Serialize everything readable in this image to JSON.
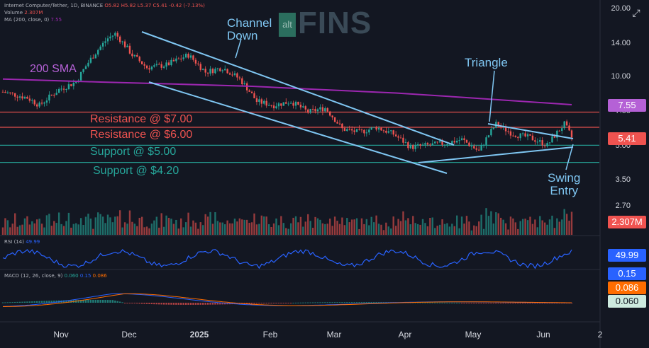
{
  "header": {
    "symbol": "Internet Computer/Tether, 1D, BINANCE",
    "ohlc_o": "O5.82",
    "ohlc_h": "H5.82",
    "ohlc_l": "L5.37",
    "ohlc_c": "C5.41",
    "change": "-0.42 (-7.13%)",
    "volume_label": "Volume",
    "volume_value": "2.307M",
    "ma_label": "MA (200, close, 0)",
    "ma_value": "7.55",
    "rsi_label": "RSI (14)",
    "rsi_value": "49.99",
    "macd_label": "MACD (12, 26, close, 9)",
    "macd_v1": "0.060",
    "macd_v2": "0.15",
    "macd_v3": "0.086"
  },
  "watermark": {
    "alt": "alt",
    "name": "FINS"
  },
  "annotations": {
    "channel": "Channel\nDown",
    "triangle": "Triangle",
    "swing": "Swing\nEntry",
    "sma": "200 SMA",
    "res7": "Resistance @ $7.00",
    "res6": "Resistance @ $6.00",
    "sup5": "Support @ $5.00",
    "sup42": "Support @ $4.20"
  },
  "y_ticks": [
    "20.00",
    "14.00",
    "10.00",
    "7.00",
    "5.00",
    "3.50",
    "2.70"
  ],
  "badges": {
    "sma": "7.55",
    "price": "5.41",
    "volume": "2.307M",
    "rsi": "49.99",
    "macd_a": "0.15",
    "macd_b": "0.086",
    "macd_c": "0.060"
  },
  "colors": {
    "up": "#26a69a",
    "down": "#ef5350",
    "sma": "#9c27b0",
    "rsi": "#2962ff",
    "macd": "#2962ff",
    "signal": "#ff6d00",
    "channel": "#7fc6f2",
    "resistance": "#ef5350",
    "support": "#26a69a"
  },
  "x_labels": [
    "Nov",
    "Dec",
    "2025",
    "Feb",
    "Mar",
    "Apr",
    "May",
    "Jun",
    "2"
  ],
  "chart_data": {
    "type": "candlestick",
    "symbol": "Internet Computer/Tether",
    "interval": "1D",
    "y_scale": "log",
    "ylim": [
      3.0,
      20.0
    ],
    "price_path": [
      [
        "2024-10-22",
        8.6
      ],
      [
        "2024-11-01",
        8.1
      ],
      [
        "2024-11-06",
        7.5
      ],
      [
        "2024-11-14",
        8.8
      ],
      [
        "2024-11-21",
        9.5
      ],
      [
        "2024-11-27",
        12.0
      ],
      [
        "2024-12-04",
        14.8
      ],
      [
        "2024-12-07",
        15.5
      ],
      [
        "2024-12-14",
        12.5
      ],
      [
        "2024-12-20",
        11.0
      ],
      [
        "2024-12-28",
        11.3
      ],
      [
        "2025-01-06",
        12.5
      ],
      [
        "2025-01-13",
        10.5
      ],
      [
        "2025-01-20",
        11.0
      ],
      [
        "2025-01-27",
        9.8
      ],
      [
        "2025-02-03",
        7.8
      ],
      [
        "2025-02-10",
        7.5
      ],
      [
        "2025-02-17",
        7.8
      ],
      [
        "2025-02-24",
        7.0
      ],
      [
        "2025-03-03",
        7.3
      ],
      [
        "2025-03-10",
        5.9
      ],
      [
        "2025-03-17",
        5.7
      ],
      [
        "2025-03-24",
        6.0
      ],
      [
        "2025-03-31",
        5.6
      ],
      [
        "2025-04-07",
        4.9
      ],
      [
        "2025-04-14",
        5.0
      ],
      [
        "2025-04-21",
        5.1
      ],
      [
        "2025-04-28",
        5.3
      ],
      [
        "2025-05-05",
        4.7
      ],
      [
        "2025-05-12",
        6.2
      ],
      [
        "2025-05-19",
        5.6
      ],
      [
        "2025-05-26",
        5.4
      ],
      [
        "2025-06-02",
        5.0
      ],
      [
        "2025-06-09",
        6.2
      ],
      [
        "2025-06-12",
        5.41
      ]
    ],
    "sma200_path": [
      [
        "2024-10-22",
        9.8
      ],
      [
        "2024-12-01",
        9.5
      ],
      [
        "2025-01-01",
        9.3
      ],
      [
        "2025-02-01",
        9.1
      ],
      [
        "2025-03-01",
        8.8
      ],
      [
        "2025-04-01",
        8.5
      ],
      [
        "2025-05-01",
        8.1
      ],
      [
        "2025-06-12",
        7.55
      ]
    ],
    "horizontal_levels": [
      {
        "label": "Resistance @ $7.00",
        "value": 7.0
      },
      {
        "label": "Resistance @ $6.00",
        "value": 6.0
      },
      {
        "label": "Support @ $5.00",
        "value": 5.0
      },
      {
        "label": "Support @ $4.20",
        "value": 4.2
      }
    ],
    "last_close": 5.41,
    "sma200": 7.55,
    "volume_last": "2.307M",
    "rsi_last": 49.99,
    "macd": {
      "macd": 0.15,
      "signal": 0.086,
      "histogram": 0.06
    },
    "x_ticks": [
      "Nov",
      "Dec",
      "2025",
      "Feb",
      "Mar",
      "Apr",
      "May",
      "Jun",
      "2"
    ]
  }
}
